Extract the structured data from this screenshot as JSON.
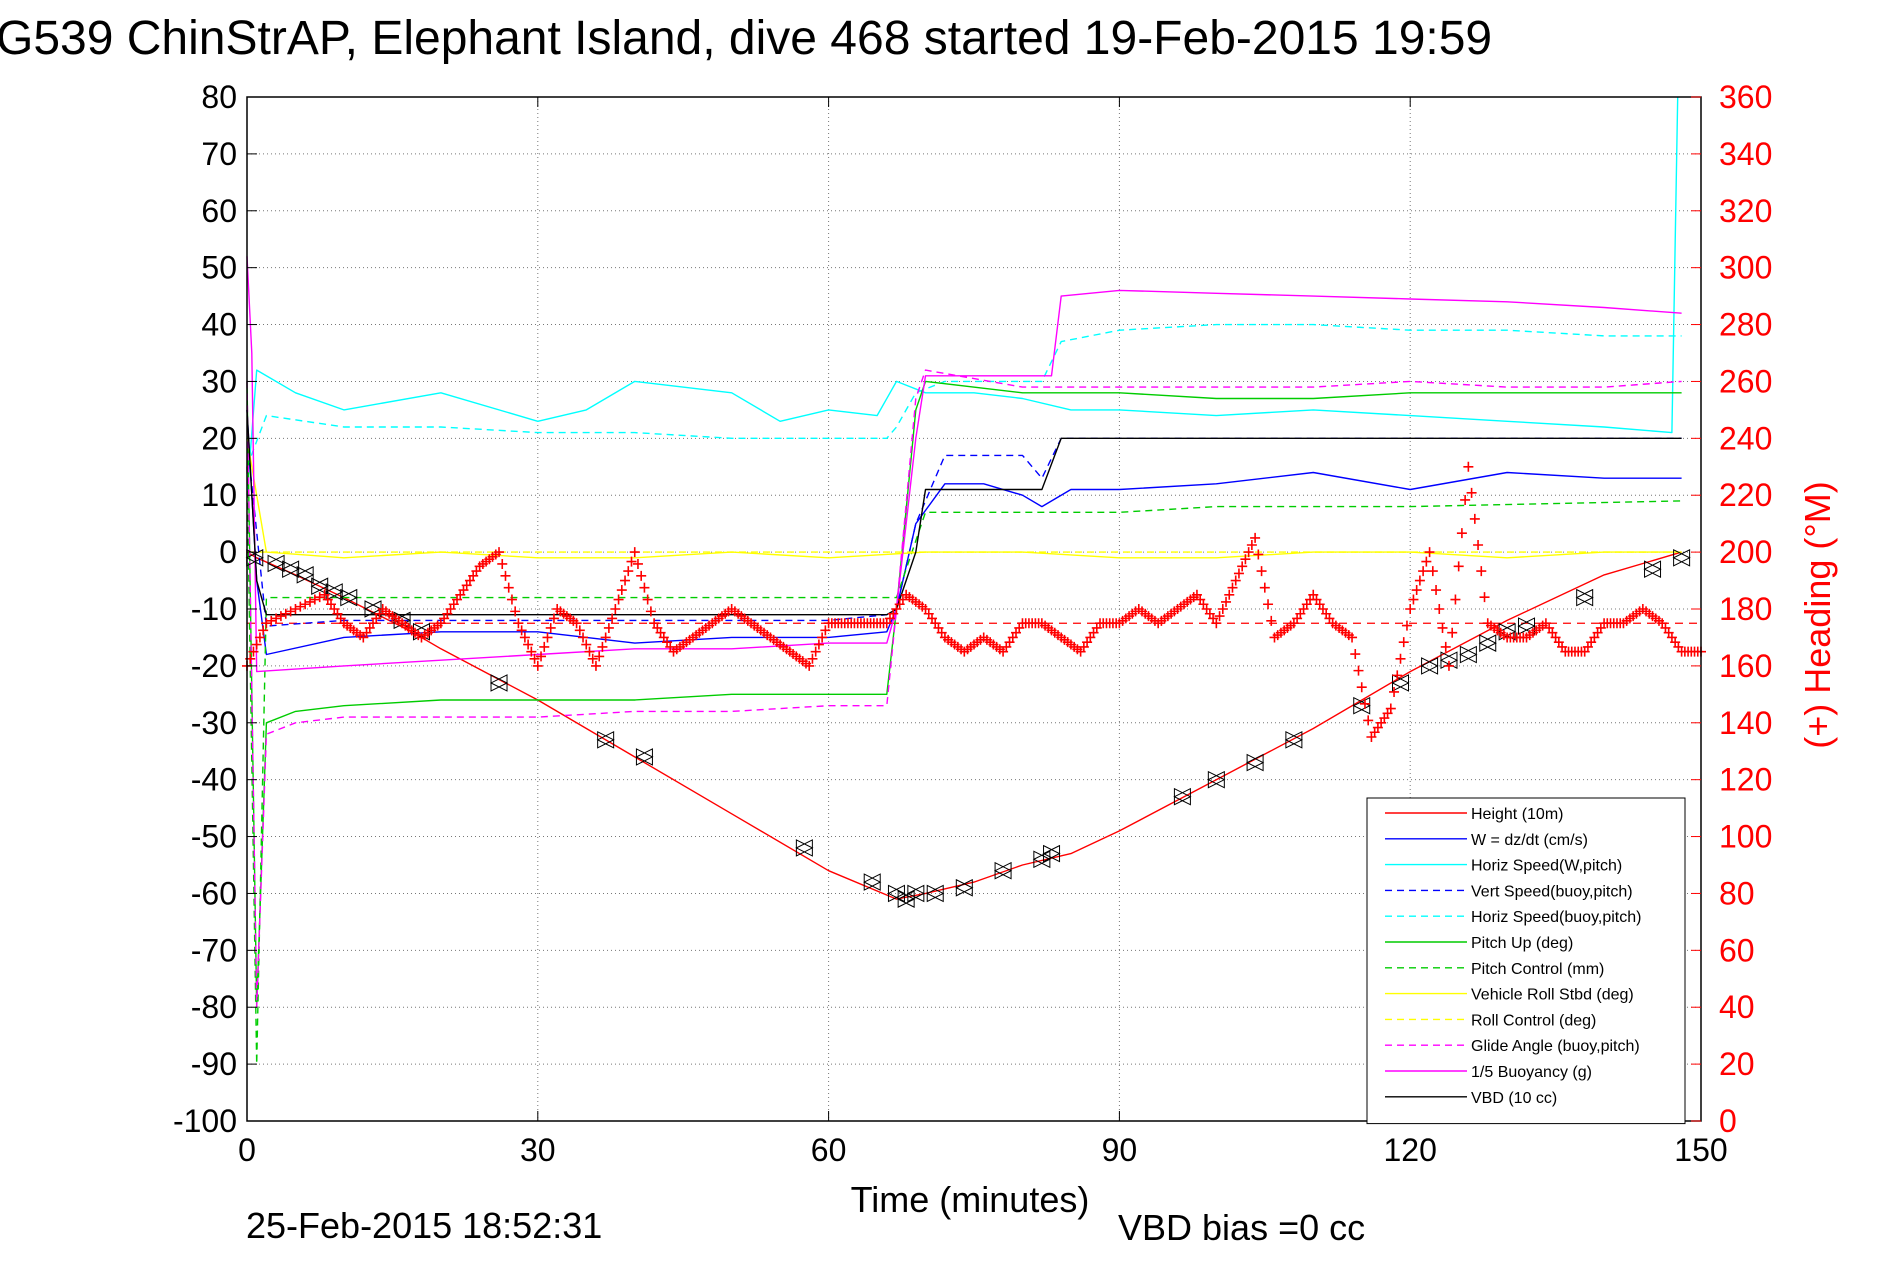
{
  "chart_data": {
    "type": "line",
    "title": "G539 ChinStrAP, Elephant Island, dive 468 started 19-Feb-2015 19:59",
    "xlabel": "Time (minutes)",
    "ylabel_right": "(+) Heading (°M)",
    "footer_left": "25-Feb-2015 18:52:31",
    "footer_right": "VBD bias =0 cc",
    "xlim": [
      0,
      150
    ],
    "ylim": [
      -100,
      80
    ],
    "ylim_right": [
      0,
      360
    ],
    "xticks": [
      0,
      30,
      60,
      90,
      120,
      150
    ],
    "yticks": [
      80,
      70,
      60,
      50,
      40,
      30,
      20,
      10,
      0,
      -10,
      -20,
      -30,
      -40,
      -50,
      -60,
      -70,
      -80,
      -90,
      -100
    ],
    "yticks_right": [
      360,
      340,
      320,
      300,
      280,
      260,
      240,
      220,
      200,
      180,
      160,
      140,
      120,
      100,
      80,
      60,
      40,
      20,
      0
    ],
    "grid": true,
    "legend_position": "bottom-right",
    "heading_reference": 175,
    "series": [
      {
        "name": "Height (10m)",
        "color": "#ff0000",
        "style": "solid",
        "x": [
          0,
          1,
          5,
          10,
          17,
          20,
          30,
          40,
          50,
          60,
          67,
          70,
          75,
          80,
          85,
          90,
          100,
          110,
          120,
          130,
          140,
          148
        ],
        "y": [
          0,
          -1,
          -4,
          -8,
          -14,
          -17,
          -26,
          -36,
          -46,
          -56,
          -61,
          -60,
          -58,
          -55,
          -53,
          -49,
          -40,
          -31,
          -21,
          -12,
          -4,
          0
        ]
      },
      {
        "name": "W = dz/dt (cm/s)",
        "color": "#0000ff",
        "style": "solid",
        "x": [
          0,
          1,
          2,
          10,
          20,
          30,
          40,
          50,
          60,
          66,
          67,
          69,
          72,
          76,
          80,
          82,
          85,
          90,
          100,
          110,
          120,
          130,
          140,
          148
        ],
        "y": [
          25,
          -5,
          -18,
          -15,
          -14,
          -14,
          -16,
          -15,
          -15,
          -14,
          -10,
          5,
          12,
          12,
          10,
          8,
          11,
          11,
          12,
          14,
          11,
          14,
          13,
          13
        ]
      },
      {
        "name": "Horiz Speed(W,pitch)",
        "color": "#00ffff",
        "style": "solid",
        "x": [
          0,
          1,
          5,
          10,
          20,
          30,
          35,
          40,
          50,
          55,
          60,
          65,
          67,
          70,
          75,
          80,
          85,
          90,
          100,
          110,
          120,
          130,
          140,
          147,
          147.6
        ],
        "y": [
          10,
          32,
          28,
          25,
          28,
          23,
          25,
          30,
          28,
          23,
          25,
          24,
          30,
          28,
          28,
          27,
          25,
          25,
          24,
          25,
          24,
          23,
          22,
          21,
          80
        ]
      },
      {
        "name": "Vert Speed(buoy,pitch)",
        "color": "#0000ff",
        "style": "dashed",
        "x": [
          0,
          2,
          10,
          30,
          50,
          60,
          66,
          67,
          69,
          72,
          80,
          82,
          84,
          90,
          100,
          110,
          120,
          130,
          140,
          148
        ],
        "y": [
          20,
          -13,
          -12,
          -12,
          -12,
          -12,
          -11,
          -10,
          5,
          17,
          17,
          13,
          20,
          20,
          20,
          20,
          20,
          20,
          20,
          20
        ]
      },
      {
        "name": "Horiz Speed(buoy,pitch)",
        "color": "#00ffff",
        "style": "dashed",
        "x": [
          0,
          2,
          10,
          20,
          30,
          40,
          50,
          60,
          66,
          67,
          69,
          72,
          80,
          82,
          84,
          90,
          100,
          110,
          120,
          130,
          140,
          148
        ],
        "y": [
          15,
          24,
          22,
          22,
          21,
          21,
          20,
          20,
          20,
          22,
          28,
          30,
          30,
          30,
          37,
          39,
          40,
          40,
          39,
          39,
          38,
          38
        ]
      },
      {
        "name": "Pitch Up (deg)",
        "color": "#00cc00",
        "style": "solid",
        "x": [
          0,
          1,
          2,
          5,
          10,
          20,
          30,
          40,
          50,
          60,
          66,
          67,
          69,
          70,
          80,
          90,
          100,
          110,
          120,
          130,
          140,
          148
        ],
        "y": [
          30,
          -80,
          -30,
          -28,
          -27,
          -26,
          -26,
          -26,
          -25,
          -25,
          -25,
          -10,
          25,
          30,
          28,
          28,
          27,
          27,
          28,
          28,
          28,
          28
        ]
      },
      {
        "name": "Pitch Control (mm)",
        "color": "#00cc00",
        "style": "dashed",
        "x": [
          0,
          1,
          2,
          10,
          30,
          50,
          66,
          67,
          70,
          80,
          90,
          100,
          120,
          148
        ],
        "y": [
          15,
          -90,
          -8,
          -8,
          -8,
          -8,
          -8,
          -8,
          7,
          7,
          7,
          8,
          8,
          9
        ]
      },
      {
        "name": "Vehicle Roll Stbd (deg)",
        "color": "#ffff00",
        "style": "solid",
        "x": [
          0,
          2,
          10,
          20,
          30,
          40,
          50,
          60,
          70,
          80,
          90,
          100,
          110,
          120,
          130,
          140,
          148
        ],
        "y": [
          20,
          0,
          -1,
          0,
          -1,
          -1,
          0,
          -1,
          0,
          0,
          -1,
          -1,
          0,
          0,
          -1,
          0,
          0
        ]
      },
      {
        "name": "Roll Control (deg)",
        "color": "#ffff00",
        "style": "dashed",
        "x": [
          0,
          5,
          10,
          20,
          30,
          40,
          50,
          60,
          70,
          80,
          90,
          100,
          110,
          120,
          130,
          140,
          148
        ],
        "y": [
          0,
          0,
          0,
          0,
          0,
          0,
          0,
          0,
          0,
          0,
          0,
          0,
          0,
          0,
          0,
          0,
          0
        ]
      },
      {
        "name": "Glide Angle (buoy,pitch)",
        "color": "#ff00ff",
        "style": "dashed",
        "x": [
          0,
          1,
          2,
          5,
          10,
          20,
          30,
          40,
          50,
          60,
          66,
          67,
          69,
          70,
          80,
          90,
          100,
          110,
          120,
          130,
          140,
          148
        ],
        "y": [
          30,
          -80,
          -32,
          -30,
          -29,
          -29,
          -29,
          -28,
          -28,
          -27,
          -27,
          -10,
          27,
          32,
          29,
          29,
          29,
          29,
          30,
          29,
          29,
          30
        ]
      },
      {
        "name": "1/5 Buoyancy (g)",
        "color": "#ff00ff",
        "style": "solid",
        "x": [
          0,
          0.5,
          1,
          10,
          20,
          30,
          40,
          50,
          60,
          66,
          67,
          69,
          70,
          75,
          80,
          83,
          84,
          90,
          100,
          110,
          120,
          130,
          140,
          148
        ],
        "y": [
          52,
          35,
          -21,
          -20,
          -19,
          -18,
          -17,
          -17,
          -16,
          -16,
          -10,
          20,
          31,
          31,
          31,
          31,
          45,
          46,
          45.5,
          45,
          44.5,
          44,
          43,
          42
        ]
      },
      {
        "name": "VBD (10 cc)",
        "color": "#000000",
        "style": "solid",
        "x": [
          0,
          1,
          2,
          10,
          30,
          50,
          60,
          66,
          67,
          69,
          70,
          80,
          82,
          84,
          90,
          100,
          110,
          120,
          130,
          140,
          148
        ],
        "y": [
          25,
          -5,
          -11,
          -11,
          -11,
          -11,
          -11,
          -11,
          -10,
          0,
          11,
          11,
          11,
          20,
          20,
          20,
          20,
          20,
          20,
          20,
          20
        ]
      }
    ],
    "heading_series": {
      "name": "(+) Heading",
      "color": "#ff0000",
      "marker": "+",
      "x": [
        0,
        2,
        5,
        8,
        10,
        12,
        14,
        16,
        18,
        20,
        22,
        24,
        26,
        28,
        30,
        32,
        34,
        36,
        38,
        40,
        42,
        44,
        46,
        48,
        50,
        52,
        54,
        56,
        58,
        60,
        62,
        64,
        66,
        68,
        70,
        72,
        74,
        76,
        78,
        80,
        82,
        84,
        86,
        88,
        90,
        92,
        94,
        96,
        98,
        100,
        102,
        104,
        106,
        108,
        110,
        112,
        114,
        116,
        118,
        120,
        122,
        124,
        126,
        128,
        130,
        132,
        134,
        136,
        138,
        140,
        142,
        144,
        146,
        148,
        150
      ],
      "y": [
        160,
        175,
        180,
        185,
        175,
        170,
        180,
        175,
        170,
        175,
        185,
        195,
        200,
        175,
        160,
        180,
        175,
        160,
        180,
        200,
        175,
        165,
        170,
        175,
        180,
        175,
        170,
        165,
        160,
        175,
        175,
        175,
        175,
        185,
        180,
        170,
        165,
        170,
        165,
        175,
        175,
        170,
        165,
        175,
        175,
        180,
        175,
        180,
        185,
        175,
        190,
        205,
        170,
        175,
        185,
        175,
        170,
        135,
        145,
        180,
        200,
        160,
        230,
        175,
        170,
        170,
        175,
        165,
        165,
        175,
        175,
        180,
        175,
        165,
        165
      ]
    },
    "depth_markers": {
      "x": [
        0.8,
        3,
        4.5,
        6,
        7.5,
        9,
        10.5,
        13,
        16,
        18,
        26,
        37,
        41,
        57.5,
        64.5,
        67,
        68,
        69,
        71,
        74,
        78,
        82,
        83,
        96.5,
        100,
        104,
        108,
        115,
        119,
        122,
        124,
        126,
        128,
        130,
        132,
        138,
        145,
        148
      ],
      "y": [
        -1,
        -2,
        -3,
        -4,
        -6,
        -7,
        -8,
        -10,
        -12,
        -14,
        -23,
        -33,
        -36,
        -52,
        -58,
        -60,
        -61,
        -60,
        -60,
        -59,
        -56,
        -54,
        -53,
        -43,
        -40,
        -37,
        -33,
        -27,
        -23,
        -20,
        -19,
        -18,
        -16,
        -14,
        -13,
        -8,
        -3,
        -1
      ]
    }
  }
}
